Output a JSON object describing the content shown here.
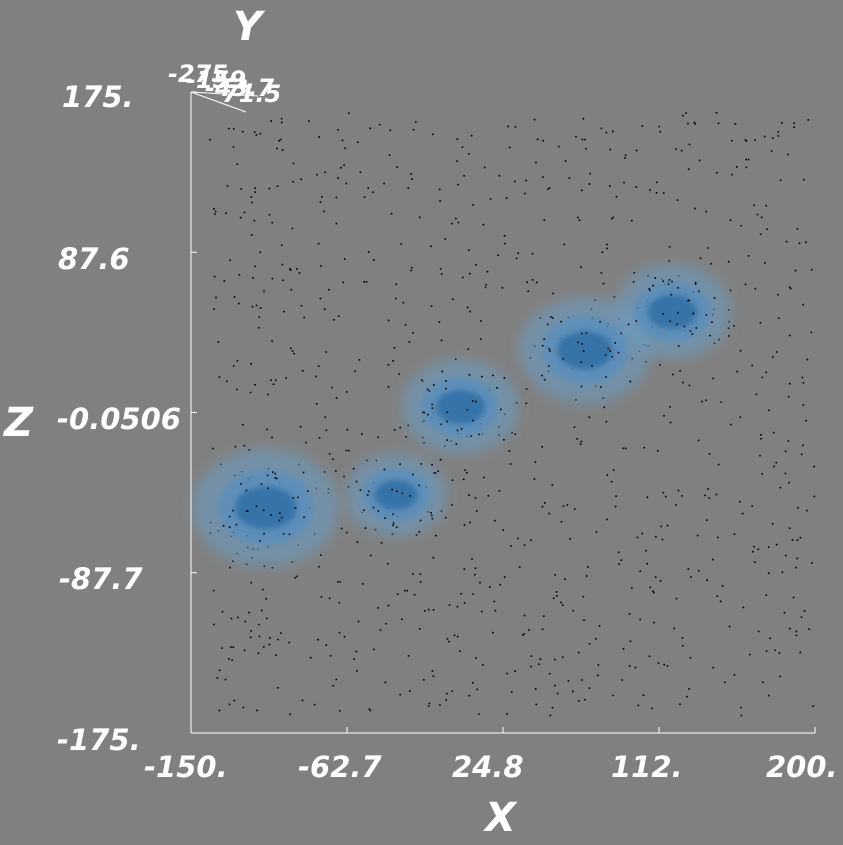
{
  "chart_data": {
    "type": "scatter",
    "subtype": "3d-density-isosurface",
    "xlabel": "X",
    "ylabel": "Y",
    "zlabel": "Z",
    "x_ticks": [
      "-150.",
      "-62.7",
      "24.8",
      "112.",
      "200."
    ],
    "z_ticks": [
      "175.",
      "87.6",
      "-0.0506",
      "-87.7",
      "-175."
    ],
    "y_ticks": [
      "-275.",
      "-159.",
      "-43.7",
      "71.5"
    ],
    "xlim": [
      -150,
      200
    ],
    "zlim": [
      -175,
      175
    ],
    "grid": false,
    "colors": {
      "background": "#808080",
      "axis": "#ffffff",
      "points": "#000000",
      "isosurface_outer": "#6a9cc4",
      "isosurface_mid": "#4f8ec4",
      "isosurface_inner": "#2f6fa6"
    },
    "density_clusters": [
      {
        "x": -108,
        "z": -52,
        "intensity": 1.0
      },
      {
        "x": -35,
        "z": -45,
        "intensity": 0.7
      },
      {
        "x": 1,
        "z": 3,
        "intensity": 0.8
      },
      {
        "x": 71,
        "z": 34,
        "intensity": 0.9
      },
      {
        "x": 120,
        "z": 55,
        "intensity": 0.8
      }
    ]
  }
}
